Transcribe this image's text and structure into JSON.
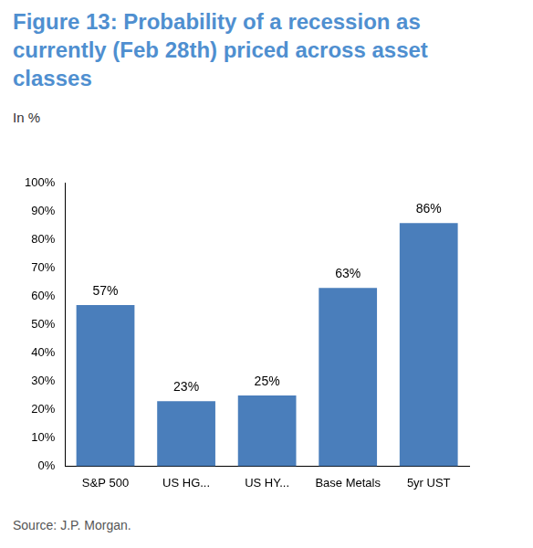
{
  "chart_data": {
    "type": "bar",
    "title": "Figure 13: Probability of a recession as currently (Feb 28th) priced across asset classes",
    "subtitle": "In %",
    "source": "Source: J.P. Morgan.",
    "categories": [
      "S&P 500",
      "US HG...",
      "US HY...",
      "Base Metals",
      "5yr UST"
    ],
    "values": [
      57,
      23,
      25,
      63,
      86
    ],
    "value_labels": [
      "57%",
      "23%",
      "25%",
      "63%",
      "86%"
    ],
    "data_labels": true,
    "color": "#4a7ebb",
    "ylim": [
      0,
      100
    ],
    "yticks": [
      {
        "value": 0,
        "label": "0%"
      },
      {
        "value": 10,
        "label": "10%"
      },
      {
        "value": 20,
        "label": "20%"
      },
      {
        "value": 30,
        "label": "30%"
      },
      {
        "value": 40,
        "label": "40%"
      },
      {
        "value": 50,
        "label": "50%"
      },
      {
        "value": 60,
        "label": "60%"
      },
      {
        "value": 70,
        "label": "70%"
      },
      {
        "value": 80,
        "label": "80%"
      },
      {
        "value": 90,
        "label": "90%"
      },
      {
        "value": 100,
        "label": "100%"
      }
    ],
    "grid": false
  }
}
